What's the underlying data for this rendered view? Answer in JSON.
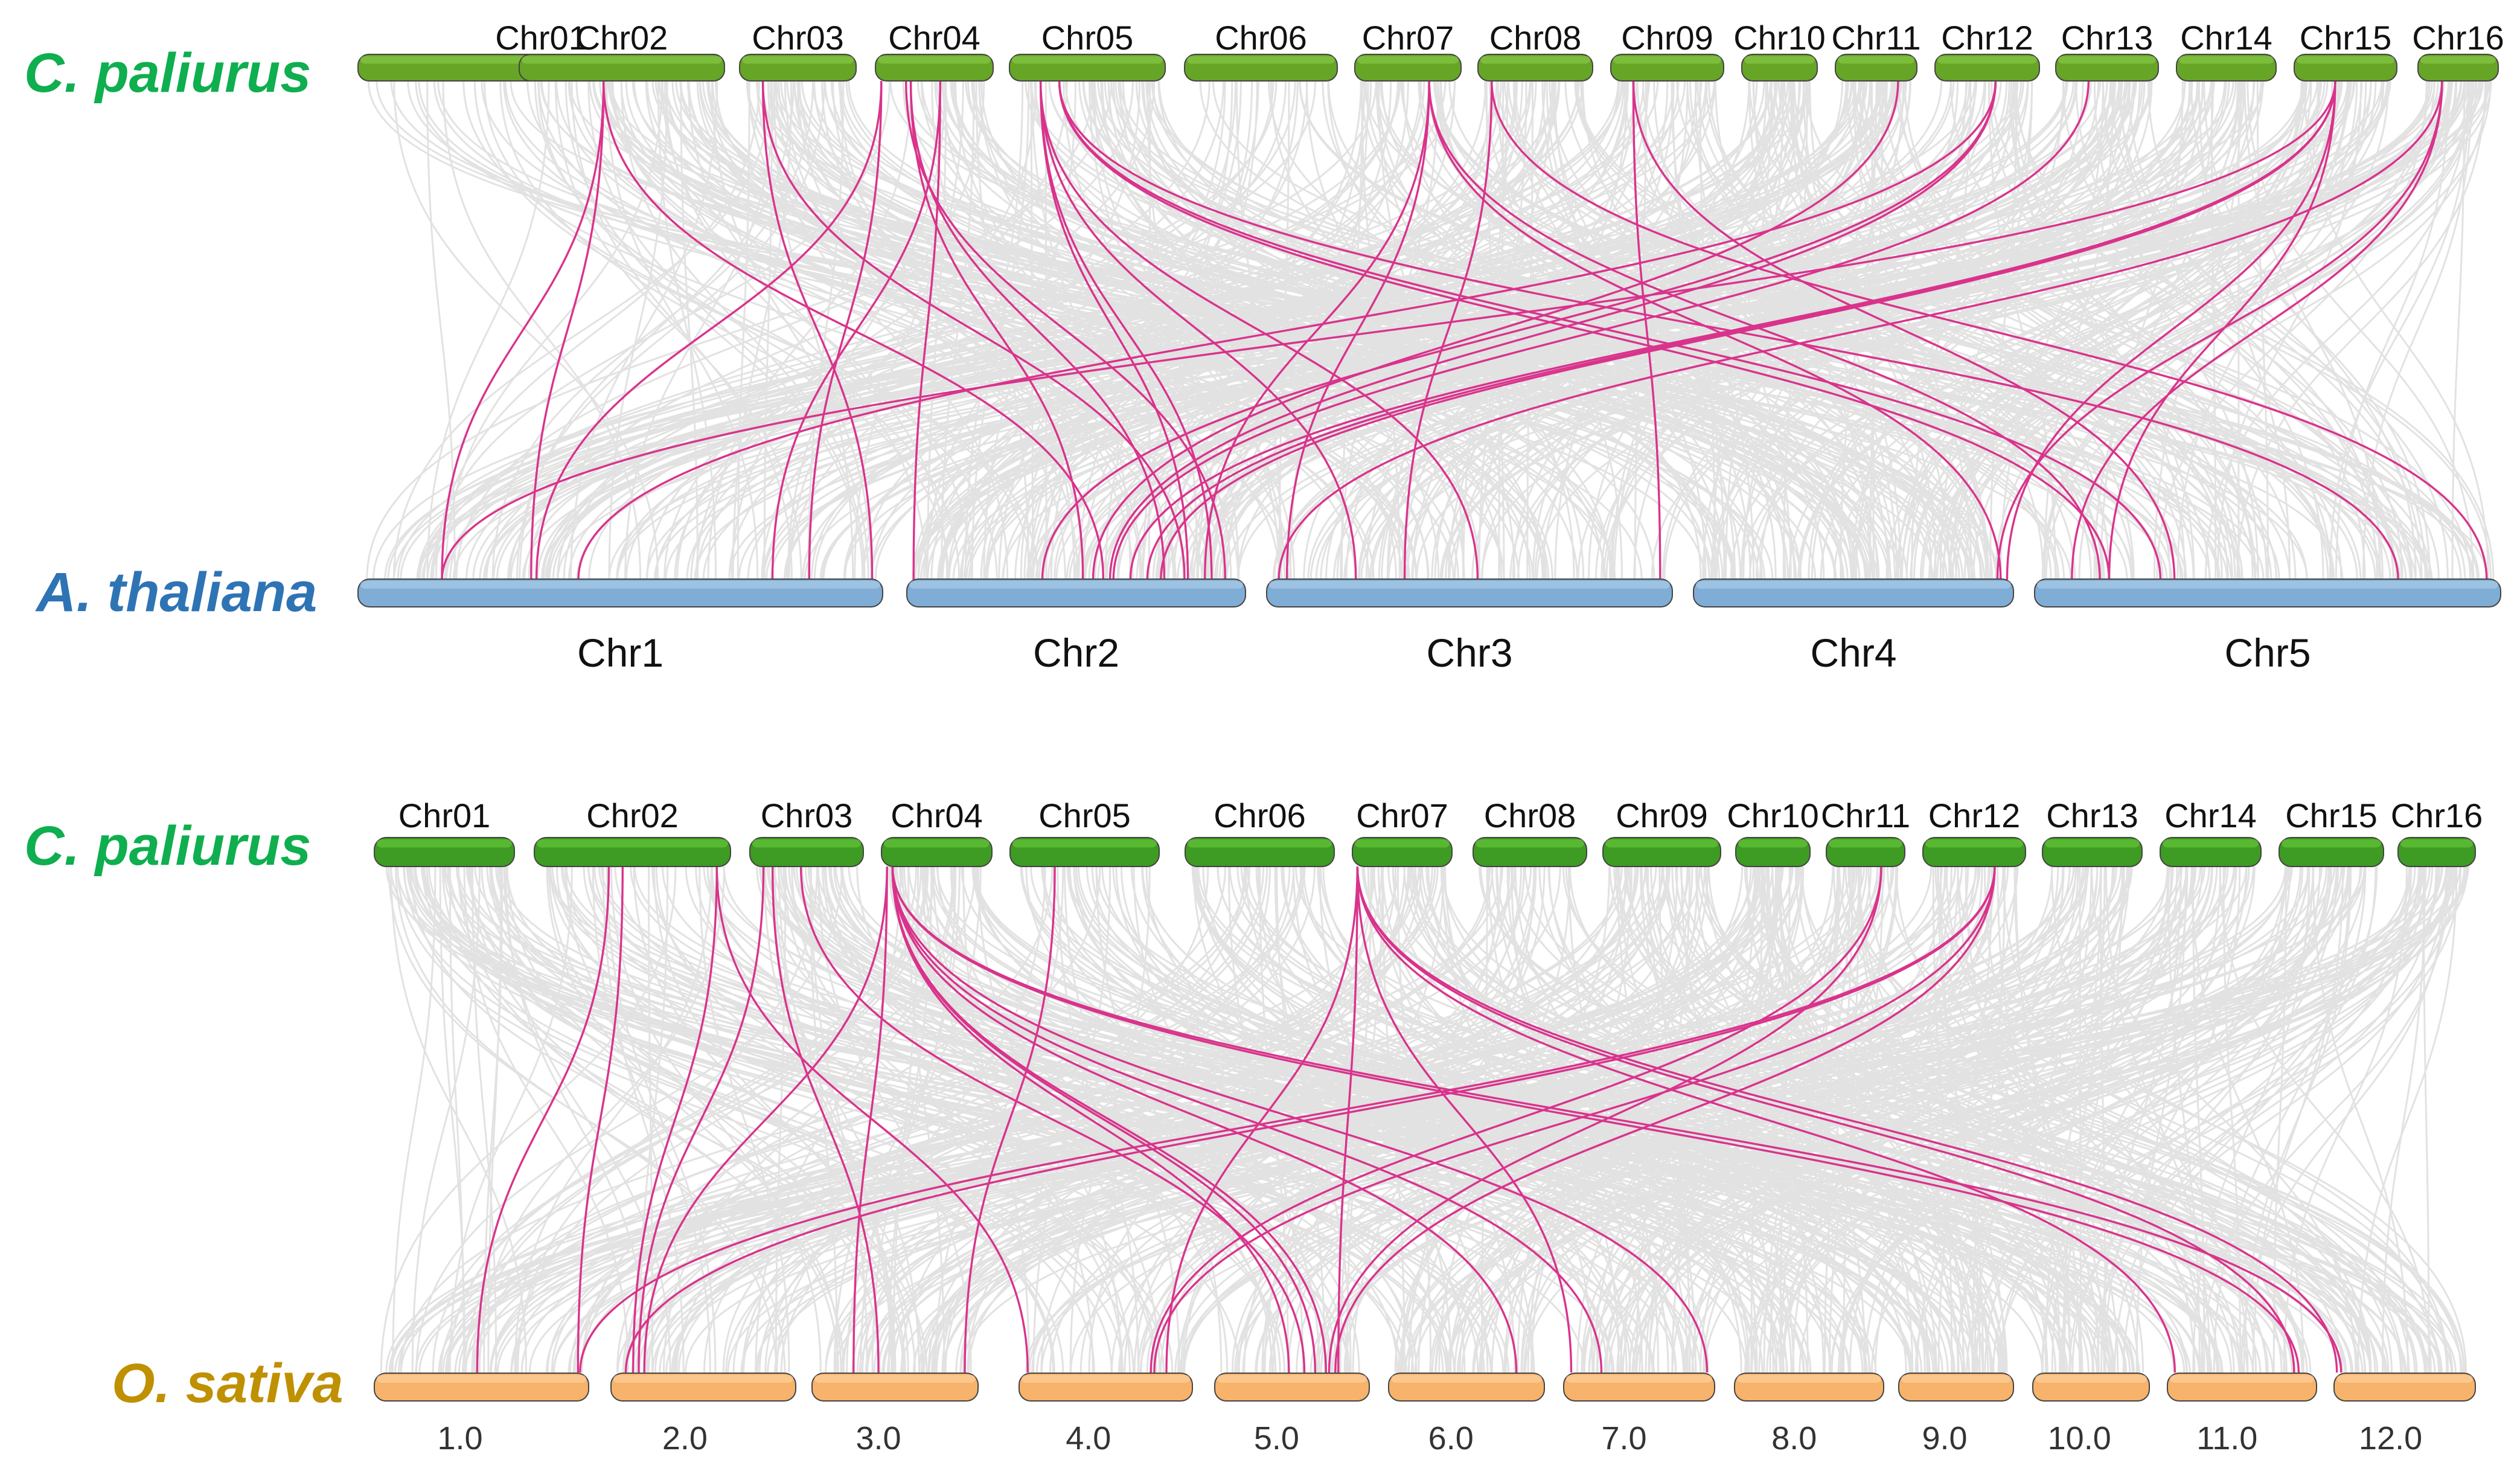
{
  "colors": {
    "cpaliurus_label": "#0fae4f",
    "athaliana_label": "#2e74b5",
    "osativa_label": "#bf9000",
    "bar_top1": "#67a527",
    "bar_top2": "#3e9b23",
    "bar_thaliana": "#7fadd6",
    "bar_sativa": "#f7b36b",
    "gray_link": "#dddddd",
    "pink_link": "#d9338c",
    "bar_stroke": "#444444"
  },
  "panel1": {
    "top_label": "C. paliurus",
    "bottom_label": "A. thaliana",
    "top_chromosomes": [
      "Chr01",
      "Chr02",
      "Chr03",
      "Chr04",
      "Chr05",
      "Chr06",
      "Chr07",
      "Chr08",
      "Chr09",
      "Chr10",
      "Chr11",
      "Chr12",
      "Chr13",
      "Chr14",
      "Chr15",
      "Chr16"
    ],
    "bottom_chromosomes": [
      "Chr1",
      "Chr2",
      "Chr3",
      "Chr4",
      "Chr5"
    ],
    "pink_links": [
      [
        1,
        0.67,
        1,
        0.16
      ],
      [
        1,
        0.67,
        1,
        0.33
      ],
      [
        1,
        0.67,
        2,
        0.58
      ],
      [
        3,
        0.2,
        1,
        0.98
      ],
      [
        3,
        0.2,
        2,
        0.82
      ],
      [
        4,
        0.05,
        1,
        0.34
      ],
      [
        4,
        0.05,
        1,
        0.86
      ],
      [
        4,
        0.26,
        2,
        0.94
      ],
      [
        4,
        0.3,
        2,
        0.76
      ],
      [
        4,
        0.3,
        2,
        0.52
      ],
      [
        4,
        0.55,
        2,
        0.02
      ],
      [
        4,
        0.55,
        1,
        0.79
      ],
      [
        5,
        0.2,
        2,
        0.83
      ],
      [
        5,
        0.2,
        2,
        0.9
      ],
      [
        5,
        0.2,
        3,
        0.22
      ],
      [
        5,
        0.2,
        3,
        0.52
      ],
      [
        5,
        0.32,
        5,
        0.16
      ],
      [
        5,
        0.32,
        5,
        0.27
      ],
      [
        5,
        0.32,
        5,
        0.78
      ],
      [
        7,
        0.7,
        5,
        0.14
      ],
      [
        7,
        0.7,
        3,
        0.05
      ],
      [
        7,
        0.7,
        2,
        0.88
      ],
      [
        7,
        0.7,
        4,
        0.96
      ],
      [
        8,
        0.12,
        5,
        0.97
      ],
      [
        8,
        0.12,
        3,
        0.34
      ],
      [
        9,
        0.2,
        5,
        0.3
      ],
      [
        9,
        0.2,
        3,
        0.97
      ],
      [
        11,
        0.77,
        2,
        0.55
      ],
      [
        12,
        0.58,
        2,
        0.6
      ],
      [
        12,
        0.58,
        1,
        0.42
      ],
      [
        12,
        0.58,
        2,
        0.4
      ],
      [
        13,
        0.32,
        2,
        0.61
      ],
      [
        15,
        0.4,
        1,
        0.16
      ],
      [
        15,
        0.4,
        2,
        0.66
      ],
      [
        15,
        0.4,
        2,
        0.71
      ],
      [
        15,
        0.4,
        2,
        0.75
      ],
      [
        15,
        0.4,
        4,
        0.98
      ],
      [
        15,
        0.4,
        5,
        0.16
      ],
      [
        16,
        0.3,
        4,
        0.95
      ],
      [
        16,
        0.3,
        5,
        0.08
      ],
      [
        16,
        0.3,
        3,
        0.03
      ]
    ]
  },
  "panel2": {
    "top_label": "C. paliurus",
    "bottom_label": "O. sativa",
    "top_chromosomes": [
      "Chr01",
      "Chr02",
      "Chr03",
      "Chr04",
      "Chr05",
      "Chr06",
      "Chr07",
      "Chr08",
      "Chr09",
      "Chr10",
      "Chr11",
      "Chr12",
      "Chr13",
      "Chr14",
      "Chr15",
      "Chr16"
    ],
    "bottom_chromosomes": [
      "1.0",
      "2.0",
      "3.0",
      "4.0",
      "5.0",
      "6.0",
      "7.0",
      "8.0",
      "9.0",
      "10.0",
      "11.0",
      "12.0"
    ],
    "pink_links": [
      [
        2,
        0.38,
        1,
        0.48
      ],
      [
        2,
        0.45,
        1,
        0.95
      ],
      [
        2,
        0.93,
        2,
        0.12
      ],
      [
        2,
        0.93,
        4,
        0.05
      ],
      [
        3,
        0.12,
        2,
        0.15
      ],
      [
        3,
        0.2,
        3,
        0.4
      ],
      [
        3,
        0.45,
        5,
        0.58
      ],
      [
        4,
        0.05,
        2,
        0.18
      ],
      [
        4,
        0.05,
        3,
        0.25
      ],
      [
        4,
        0.1,
        5,
        0.48
      ],
      [
        4,
        0.1,
        5,
        0.65
      ],
      [
        4,
        0.1,
        5,
        0.72
      ],
      [
        4,
        0.1,
        6,
        0.82
      ],
      [
        4,
        0.1,
        7,
        0.25
      ],
      [
        4,
        0.1,
        7,
        0.95
      ],
      [
        4,
        0.1,
        11,
        0.88
      ],
      [
        4,
        0.1,
        12,
        0.05
      ],
      [
        5,
        0.3,
        3,
        0.92
      ],
      [
        7,
        0.05,
        4,
        0.85
      ],
      [
        7,
        0.05,
        5,
        0.8
      ],
      [
        7,
        0.05,
        11,
        0.05
      ],
      [
        7,
        0.05,
        12,
        0.02
      ],
      [
        7,
        0.05,
        11,
        0.85
      ],
      [
        7,
        0.05,
        7,
        0.05
      ],
      [
        11,
        0.7,
        4,
        0.76
      ],
      [
        11,
        0.7,
        5,
        0.74
      ],
      [
        12,
        0.7,
        1,
        0.96
      ],
      [
        12,
        0.7,
        2,
        0.08
      ],
      [
        12,
        0.7,
        4,
        0.78
      ],
      [
        12,
        0.7,
        5,
        0.78
      ]
    ]
  }
}
